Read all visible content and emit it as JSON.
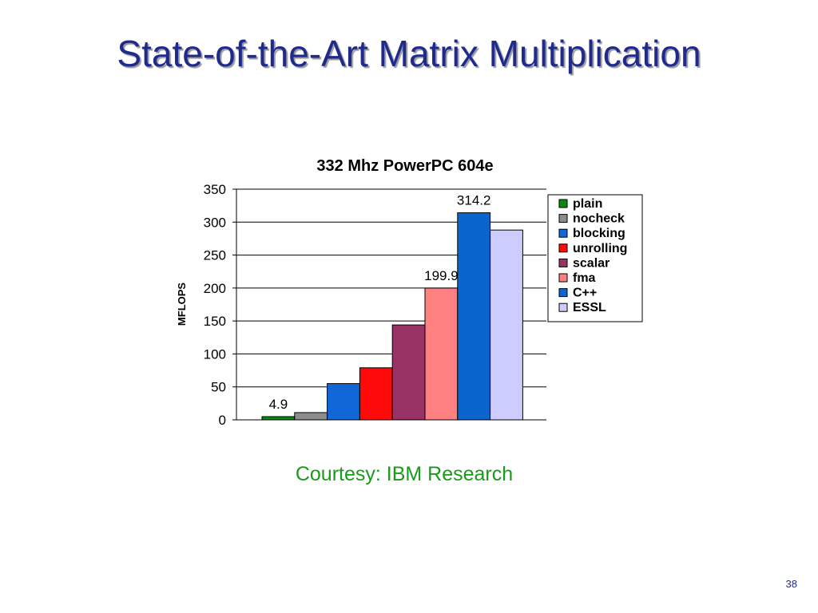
{
  "slide": {
    "title": "State-of-the-Art Matrix Multiplication",
    "courtesy": "Courtesy: IBM Research",
    "page_number": "38"
  },
  "chart_data": {
    "type": "bar",
    "title": "332 Mhz PowerPC 604e",
    "xlabel": "",
    "ylabel": "MFLOPS",
    "ylim": [
      0,
      350
    ],
    "yticks": [
      0,
      50,
      100,
      150,
      200,
      250,
      300,
      350
    ],
    "grid": true,
    "legend_position": "right",
    "series": [
      {
        "name": "plain",
        "value": 4.9,
        "color": "#0a8a0a",
        "label": "4.9"
      },
      {
        "name": "nocheck",
        "value": 11,
        "color": "#8c8c8c",
        "label": ""
      },
      {
        "name": "blocking",
        "value": 55,
        "color": "#1166d8",
        "label": ""
      },
      {
        "name": "unrolling",
        "value": 79,
        "color": "#ff0a0a",
        "label": ""
      },
      {
        "name": "scalar",
        "value": 144,
        "color": "#993366",
        "label": ""
      },
      {
        "name": "fma",
        "value": 199.9,
        "color": "#ff8080",
        "label": "199.9"
      },
      {
        "name": "C++",
        "value": 314.2,
        "color": "#0a66cc",
        "label": "314.2"
      },
      {
        "name": "ESSL",
        "value": 288,
        "color": "#ccccff",
        "label": ""
      }
    ]
  }
}
